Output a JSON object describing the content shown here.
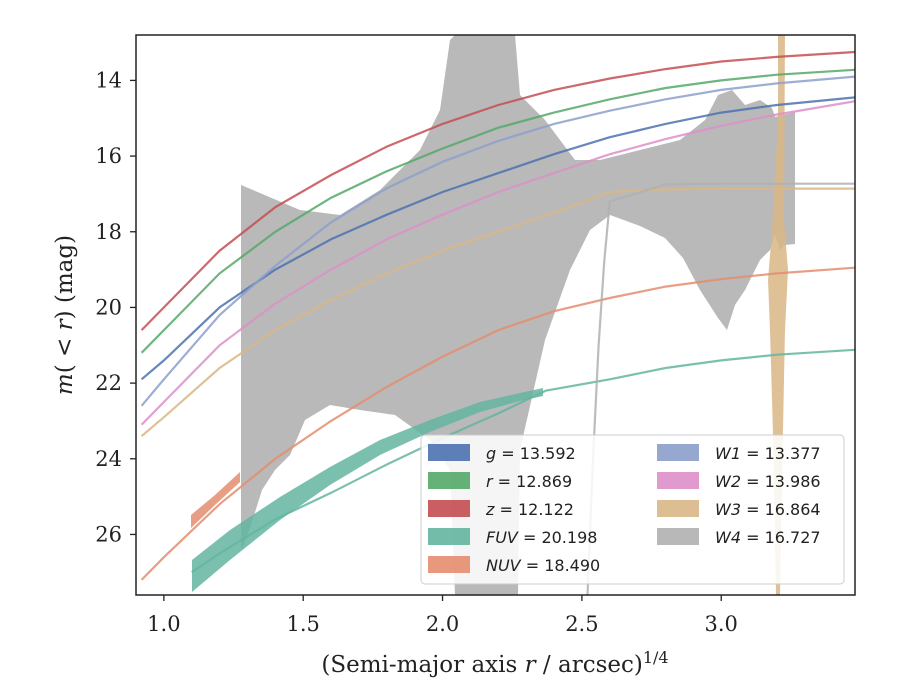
{
  "chart_data": {
    "type": "line",
    "xlabel": "(Semi-major axis r / arcsec)^1/4",
    "ylabel": "m(< r) (mag)",
    "xlim": [
      0.9,
      3.48
    ],
    "ylim": [
      27.6,
      12.8
    ],
    "y_inverted": true,
    "x_ticks": [
      "1.0",
      "1.5",
      "2.0",
      "2.5",
      "3.0"
    ],
    "y_ticks": [
      "14",
      "16",
      "18",
      "20",
      "22",
      "24",
      "26"
    ],
    "legend_placement": "lower-right",
    "grid": false,
    "series": [
      {
        "name": "g = 13.592",
        "label_math": "g",
        "value": "13.592",
        "color": "#4c72b0",
        "x": [
          0.92,
          1.0,
          1.2,
          1.4,
          1.6,
          1.8,
          2.0,
          2.2,
          2.4,
          2.6,
          2.8,
          3.0,
          3.2,
          3.48
        ],
        "y": [
          21.9,
          21.4,
          20.0,
          19.0,
          18.2,
          17.55,
          16.95,
          16.45,
          15.95,
          15.5,
          15.15,
          14.85,
          14.65,
          14.45
        ]
      },
      {
        "name": "r = 12.869",
        "label_math": "r",
        "value": "12.869",
        "color": "#55a868",
        "x": [
          0.92,
          1.0,
          1.2,
          1.4,
          1.6,
          1.8,
          2.0,
          2.2,
          2.4,
          2.6,
          2.8,
          3.0,
          3.2,
          3.48
        ],
        "y": [
          21.2,
          20.6,
          19.1,
          18.0,
          17.1,
          16.4,
          15.8,
          15.25,
          14.85,
          14.5,
          14.2,
          14.0,
          13.85,
          13.72
        ]
      },
      {
        "name": "z = 12.122",
        "label_math": "z",
        "value": "12.122",
        "color": "#c44e52",
        "x": [
          0.92,
          1.0,
          1.2,
          1.4,
          1.6,
          1.8,
          2.0,
          2.2,
          2.4,
          2.6,
          2.8,
          3.0,
          3.2,
          3.48
        ],
        "y": [
          20.6,
          20.0,
          18.5,
          17.35,
          16.5,
          15.75,
          15.15,
          14.65,
          14.25,
          13.95,
          13.7,
          13.5,
          13.38,
          13.25
        ]
      },
      {
        "name": "FUV = 20.198",
        "label_math": "FUV",
        "value": "20.198",
        "color": "#64b5a0",
        "x": [
          1.1,
          1.2,
          1.4,
          1.6,
          1.8,
          2.0,
          2.2,
          2.37,
          2.6,
          2.8,
          3.0,
          3.2,
          3.48
        ],
        "y": [
          27.0,
          26.5,
          25.6,
          24.9,
          24.15,
          23.45,
          22.8,
          22.2,
          21.9,
          21.6,
          21.4,
          21.25,
          21.12
        ]
      },
      {
        "name": "NUV = 18.490",
        "label_math": "NUV",
        "value": "18.490",
        "color": "#e48d6f",
        "x": [
          0.92,
          1.0,
          1.1,
          1.2,
          1.4,
          1.6,
          1.8,
          2.0,
          2.2,
          2.4,
          2.6,
          2.8,
          3.0,
          3.2,
          3.48
        ],
        "y": [
          27.2,
          26.6,
          25.9,
          25.2,
          24.0,
          23.0,
          22.1,
          21.3,
          20.6,
          20.1,
          19.75,
          19.45,
          19.25,
          19.1,
          18.95
        ]
      },
      {
        "name": "W1 = 13.377",
        "label_math": "W1",
        "value": "13.377",
        "color": "#8c9fcb",
        "x": [
          0.92,
          1.0,
          1.2,
          1.4,
          1.6,
          1.8,
          2.0,
          2.2,
          2.4,
          2.6,
          2.8,
          3.0,
          3.2,
          3.48
        ],
        "y": [
          22.6,
          21.9,
          20.2,
          18.9,
          17.75,
          16.85,
          16.15,
          15.6,
          15.15,
          14.8,
          14.5,
          14.25,
          14.08,
          13.9
        ]
      },
      {
        "name": "W2 = 13.986",
        "label_math": "W2",
        "value": "13.986",
        "color": "#dd8fc8",
        "x": [
          0.92,
          1.0,
          1.2,
          1.4,
          1.6,
          1.8,
          2.0,
          2.2,
          2.4,
          2.6,
          2.8,
          3.0,
          3.2,
          3.48
        ],
        "y": [
          23.1,
          22.5,
          21.0,
          19.9,
          19.0,
          18.2,
          17.55,
          16.95,
          16.45,
          15.95,
          15.55,
          15.2,
          14.9,
          14.55
        ]
      },
      {
        "name": "W3 = 16.864",
        "label_math": "W3",
        "value": "16.864",
        "color": "#d9b686",
        "x": [
          0.92,
          1.0,
          1.2,
          1.4,
          1.6,
          1.8,
          2.0,
          2.2,
          2.4,
          2.6,
          2.8,
          3.0,
          3.2,
          3.48
        ],
        "y": [
          23.4,
          22.9,
          21.6,
          20.6,
          19.8,
          19.1,
          18.5,
          18.0,
          17.5,
          16.95,
          16.88,
          16.86,
          16.86,
          16.86
        ]
      },
      {
        "name": "W4 = 16.727",
        "label_math": "W4",
        "value": "16.727",
        "color": "#b0b0b0",
        "x": [
          2.52,
          2.54,
          2.56,
          2.58,
          2.6,
          2.8,
          3.0,
          3.2,
          3.48
        ],
        "y": [
          27.6,
          24.0,
          21.0,
          18.8,
          17.2,
          16.75,
          16.73,
          16.73,
          16.73
        ]
      }
    ]
  }
}
